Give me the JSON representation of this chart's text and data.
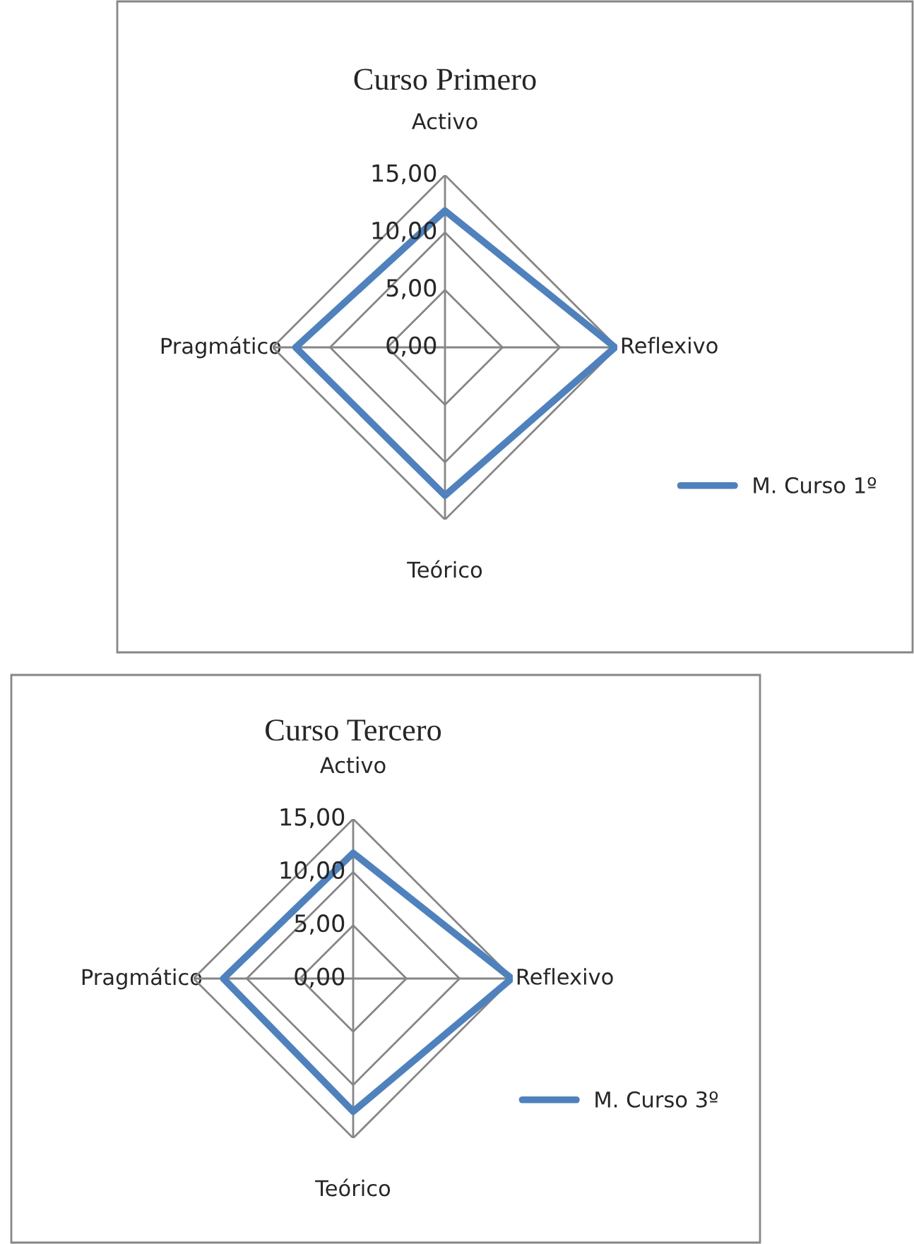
{
  "chart_data": [
    {
      "type": "radar",
      "title": "Curso Primero",
      "categories": [
        "Activo",
        "Reflexivo",
        "Teórico",
        "Pragmático"
      ],
      "series": [
        {
          "name": "M. Curso 1º",
          "color": "#4f81bd",
          "values": [
            11.9,
            14.8,
            12.9,
            13.0
          ]
        }
      ],
      "ylim": [
        0,
        15
      ],
      "yticks": [
        {
          "value": 0,
          "label": "0,00"
        },
        {
          "value": 5,
          "label": "5,00"
        },
        {
          "value": 10,
          "label": "10,00"
        },
        {
          "value": 15,
          "label": "15,00"
        }
      ],
      "grid": true,
      "legend": "right"
    },
    {
      "type": "radar",
      "title": "Curso Tercero",
      "categories": [
        "Activo",
        "Reflexivo",
        "Teórico",
        "Pragmático"
      ],
      "series": [
        {
          "name": "M. Curso 3º",
          "color": "#4f81bd",
          "values": [
            11.8,
            14.9,
            12.5,
            12.2
          ]
        }
      ],
      "ylim": [
        0,
        15
      ],
      "yticks": [
        {
          "value": 0,
          "label": "0,00"
        },
        {
          "value": 5,
          "label": "5,00"
        },
        {
          "value": 10,
          "label": "10,00"
        },
        {
          "value": 15,
          "label": "15,00"
        }
      ],
      "grid": true,
      "legend": "right"
    }
  ]
}
